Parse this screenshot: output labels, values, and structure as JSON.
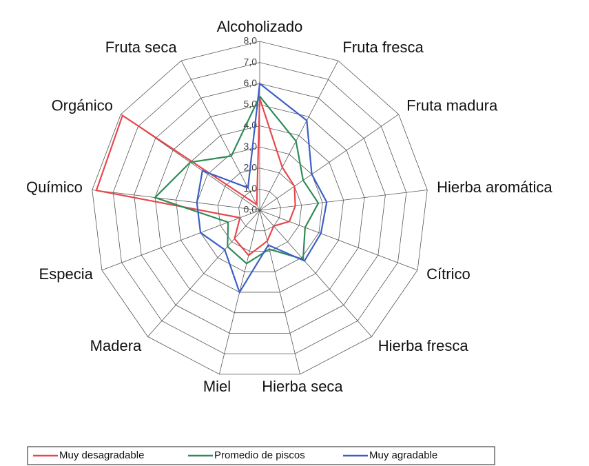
{
  "chart_data": {
    "type": "radar",
    "categories": [
      "Alcoholizado",
      "Fruta fresca",
      "Fruta madura",
      "Hierba aromática",
      "Cítrico",
      "Hierba fresca",
      "Hierba seca",
      "Miel",
      "Madera",
      "Especia",
      "Químico",
      "Orgánico",
      "Fruta seca"
    ],
    "series": [
      {
        "name": "Muy desagradable",
        "color": "#e8474c",
        "values": [
          5.3,
          2.3,
          2.0,
          1.7,
          1.5,
          1.0,
          1.5,
          2.2,
          1.8,
          1.0,
          7.8,
          7.9,
          0.3
        ]
      },
      {
        "name": "Promedio de piscos",
        "color": "#2e8b57",
        "values": [
          5.4,
          3.7,
          2.5,
          2.8,
          2.3,
          3.1,
          1.9,
          2.6,
          2.3,
          1.6,
          5.0,
          4.0,
          2.9
        ]
      },
      {
        "name": "Muy agradable",
        "color": "#3a5fc8",
        "values": [
          6.0,
          4.8,
          3.0,
          3.2,
          3.1,
          3.2,
          1.7,
          4.0,
          2.5,
          3.0,
          3.0,
          3.3,
          1.2
        ]
      }
    ],
    "ylim": [
      0,
      8
    ],
    "yticks": [
      {
        "value": 0,
        "label": "0,0"
      },
      {
        "value": 1,
        "label": "1,0"
      },
      {
        "value": 2,
        "label": "2,0"
      },
      {
        "value": 3,
        "label": "3,0"
      },
      {
        "value": 4,
        "label": "4,0"
      },
      {
        "value": 5,
        "label": "5,0"
      },
      {
        "value": 6,
        "label": "6,0"
      },
      {
        "value": 7,
        "label": "7,0"
      },
      {
        "value": 8,
        "label": "8,0"
      }
    ],
    "grid": true,
    "legend": "bottom"
  }
}
